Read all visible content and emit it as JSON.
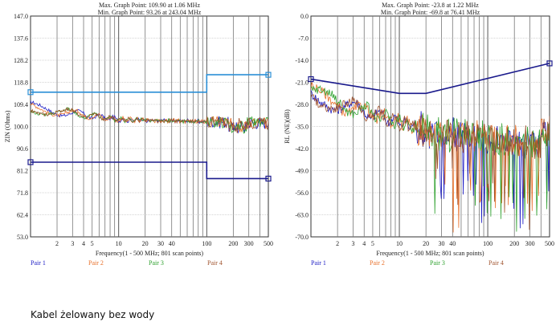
{
  "caption": "Kabel żelowany bez wody",
  "chart_data": [
    {
      "type": "line",
      "max_text": "Max. Graph Point: 109.90 at 1.06 MHz",
      "min_text": "Min. Graph Point: 93.26 at 243.04 MHz",
      "ylabel": "ZIN (Ohms)",
      "xlabel": "Frequency(1 - 500 MHz; 801 scan points)",
      "x_scale": "log",
      "xlim": [
        1,
        500
      ],
      "ylim": [
        53.0,
        147.0
      ],
      "y_ticks": [
        "147.0",
        "137.6",
        "128.2",
        "118.8",
        "109.4",
        "100.0",
        "90.6",
        "81.2",
        "71.8",
        "62.4",
        "53.0"
      ],
      "x_ticks": [
        "2",
        "3",
        "4",
        "5",
        "10",
        "20",
        "30",
        "40",
        "100",
        "200",
        "300",
        "500"
      ],
      "legend": [
        "Pair 1",
        "Pair 2",
        "Pair 3",
        "Pair 4"
      ],
      "limit_lines": [
        {
          "color": "#2b8fd6",
          "points": [
            [
              1,
              114.6
            ],
            [
              100,
              114.6
            ],
            [
              100,
              122.0
            ],
            [
              500,
              122.0
            ]
          ]
        },
        {
          "color": "#1a1a8c",
          "points": [
            [
              1,
              84.8
            ],
            [
              100,
              84.8
            ],
            [
              100,
              77.8
            ],
            [
              500,
              77.8
            ]
          ]
        }
      ]
    },
    {
      "type": "line",
      "max_text": "Max. Graph Point: -23.8 at 1.22 MHz",
      "min_text": "Min. Graph Point: -69.8 at 76.41 MHz",
      "ylabel": "RL (NE)(dB)",
      "xlabel": "Frequency(1 - 500 MHz; 801 scan points)",
      "x_scale": "log",
      "xlim": [
        1,
        500
      ],
      "ylim": [
        -70.0,
        0.0
      ],
      "y_ticks": [
        "0.0",
        "-7.0",
        "-14.0",
        "-21.0",
        "-28.0",
        "-35.0",
        "-42.0",
        "-49.0",
        "-56.0",
        "-63.0",
        "-70.0"
      ],
      "x_ticks": [
        "2",
        "3",
        "4",
        "5",
        "10",
        "20",
        "30",
        "40",
        "100",
        "200",
        "300",
        "500"
      ],
      "legend": [
        "Pair 1",
        "Pair 2",
        "Pair 3",
        "Pair 4"
      ],
      "limit_lines": [
        {
          "color": "#1a1a8c",
          "points": [
            [
              1,
              -20.0
            ],
            [
              10,
              -24.5
            ],
            [
              20,
              -24.5
            ],
            [
              500,
              -15.0
            ]
          ]
        }
      ]
    }
  ],
  "colors": {
    "pair1": "#1c1cc4",
    "pair2": "#e8702a",
    "pair3": "#2ca02c",
    "pair4": "#a0522d"
  }
}
